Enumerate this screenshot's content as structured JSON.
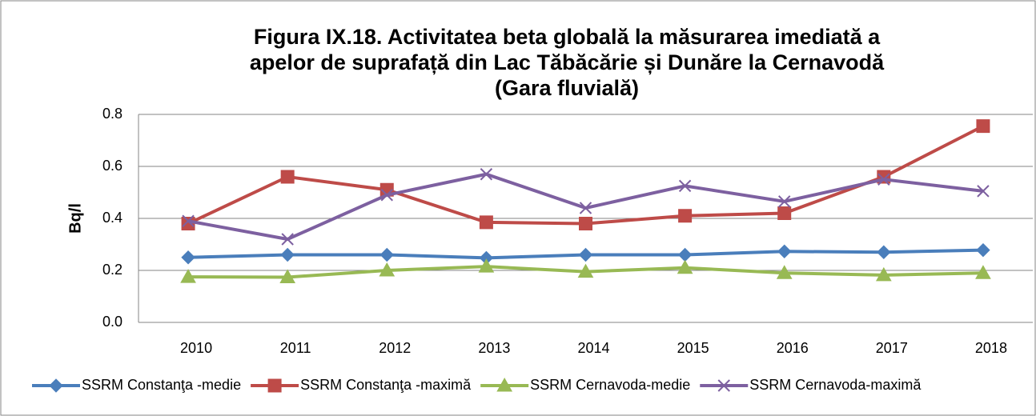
{
  "chart_data": {
    "type": "line",
    "title": [
      "Figura IX.18. Activitatea beta globală  la măsurarea imediată a",
      "apelor de suprafață din Lac Tăbăcărie și Dunăre la Cernavodă",
      "(Gara fluvială)"
    ],
    "ylabel": "Bq/l",
    "categories": [
      "2010",
      "2011",
      "2012",
      "2013",
      "2014",
      "2015",
      "2016",
      "2017",
      "2018"
    ],
    "series": [
      {
        "name": "SSRM Constanţa -medie",
        "color": "#4a7ebb",
        "marker": "diamond",
        "values": [
          0.25,
          0.26,
          0.26,
          0.248,
          0.26,
          0.26,
          0.273,
          0.27,
          0.278
        ]
      },
      {
        "name": "SSRM Constanţa -maximă",
        "color": "#be4b48",
        "marker": "square",
        "values": [
          0.38,
          0.56,
          0.51,
          0.385,
          0.38,
          0.41,
          0.42,
          0.56,
          0.755
        ]
      },
      {
        "name": "SSRM Cernavoda-medie",
        "color": "#98b954",
        "marker": "triangle",
        "values": [
          0.175,
          0.174,
          0.2,
          0.215,
          0.195,
          0.21,
          0.19,
          0.182,
          0.19
        ]
      },
      {
        "name": "SSRM Cernavoda-maximă",
        "color": "#7d60a0",
        "marker": "x",
        "values": [
          0.39,
          0.32,
          0.49,
          0.57,
          0.44,
          0.525,
          0.465,
          0.55,
          0.505
        ]
      }
    ],
    "ylim": [
      0,
      0.8
    ],
    "yticks": [
      {
        "value": 0,
        "label": "0.0"
      },
      0.2,
      0.4,
      0.6,
      0.8
    ],
    "grid": true,
    "legend": "bottom"
  }
}
